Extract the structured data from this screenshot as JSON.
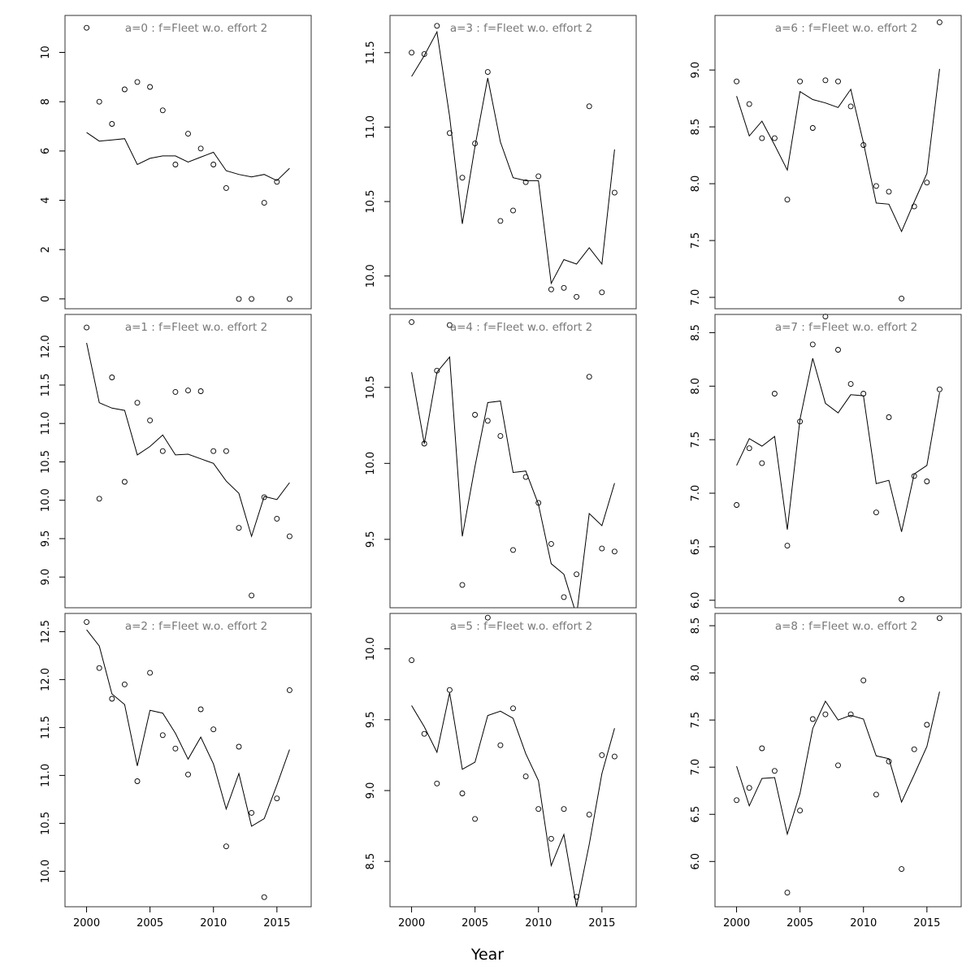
{
  "chart_data": {
    "type": "scatter",
    "xlabel": "Year",
    "layout": "3x3 grid, panels ordered top-to-bottom then left-to-right",
    "x": [
      2000,
      2001,
      2002,
      2003,
      2004,
      2005,
      2006,
      2007,
      2008,
      2009,
      2010,
      2011,
      2012,
      2013,
      2014,
      2015,
      2016
    ],
    "x_ticks": [
      2000,
      2005,
      2010,
      2015
    ],
    "xlim": [
      1998.3,
      2017.7
    ],
    "series_style": {
      "observed": "open circles",
      "fitted": "solid line"
    },
    "panels": [
      {
        "title": "a=0  :  f=Fleet w.o. effort 2",
        "ylim": [
          -0.4,
          11.5
        ],
        "yticks": [
          0,
          2,
          4,
          6,
          8,
          10
        ],
        "observed": [
          11.0,
          8.0,
          7.1,
          8.5,
          8.8,
          8.6,
          7.65,
          5.45,
          6.7,
          6.1,
          5.45,
          4.5,
          0.0,
          0.0,
          3.9,
          4.75,
          0.0
        ],
        "fitted": [
          6.75,
          6.4,
          6.45,
          6.5,
          5.45,
          5.7,
          5.8,
          5.8,
          5.55,
          5.75,
          5.95,
          5.2,
          5.05,
          4.95,
          5.05,
          4.8,
          5.3
        ]
      },
      {
        "title": "a=1  :  f=Fleet w.o. effort 2",
        "ylim": [
          8.6,
          12.42
        ],
        "yticks": [
          "9.0",
          "9.5",
          "10.0",
          "10.5",
          "11.0",
          "11.5",
          "12.0"
        ],
        "observed": [
          12.25,
          10.02,
          11.6,
          10.24,
          11.27,
          11.04,
          10.64,
          11.41,
          11.43,
          11.42,
          10.64,
          10.64,
          9.64,
          8.76,
          10.04,
          9.76,
          9.53
        ],
        "fitted": [
          12.05,
          11.27,
          11.2,
          11.17,
          10.59,
          10.7,
          10.85,
          10.59,
          10.6,
          10.54,
          10.48,
          10.25,
          10.09,
          9.53,
          10.05,
          10.01,
          10.23
        ]
      },
      {
        "title": "a=2  :  f=Fleet w.o. effort 2",
        "ylim": [
          9.63,
          12.69
        ],
        "yticks": [
          "10.0",
          "10.5",
          "11.0",
          "11.5",
          "12.0",
          "12.5"
        ],
        "observed": [
          12.6,
          12.12,
          11.8,
          11.95,
          10.94,
          12.07,
          11.42,
          11.28,
          11.01,
          11.69,
          11.48,
          10.26,
          11.3,
          10.61,
          9.73,
          10.76,
          11.89
        ],
        "fitted": [
          12.52,
          12.35,
          11.85,
          11.74,
          11.1,
          11.68,
          11.65,
          11.44,
          11.17,
          11.4,
          11.12,
          10.65,
          11.02,
          10.47,
          10.55,
          10.9,
          11.27
        ]
      },
      {
        "title": "a=3  :  f=Fleet w.o. effort 2",
        "ylim": [
          9.78,
          11.75
        ],
        "yticks": [
          "10.0",
          "10.5",
          "11.0",
          "11.5"
        ],
        "observed": [
          11.5,
          11.49,
          11.68,
          10.96,
          10.66,
          10.89,
          11.37,
          10.37,
          10.44,
          10.63,
          10.67,
          9.91,
          9.92,
          9.86,
          11.14,
          9.89,
          10.56
        ],
        "fitted": [
          11.34,
          11.48,
          11.64,
          11.07,
          10.35,
          10.87,
          11.33,
          10.9,
          10.66,
          10.64,
          10.64,
          9.95,
          10.11,
          10.08,
          10.19,
          10.08,
          10.85
        ]
      },
      {
        "title": "a=4  :  f=Fleet w.o. effort 2",
        "ylim": [
          9.05,
          10.98
        ],
        "yticks": [
          "9.5",
          "10.0",
          "10.5"
        ],
        "observed": [
          10.93,
          10.13,
          10.61,
          10.91,
          9.2,
          10.32,
          10.28,
          10.18,
          9.43,
          9.91,
          9.74,
          9.47,
          9.12,
          9.27,
          10.57,
          9.44,
          9.42
        ],
        "fitted": [
          10.6,
          10.13,
          10.6,
          10.7,
          9.52,
          9.98,
          10.4,
          10.41,
          9.94,
          9.95,
          9.73,
          9.34,
          9.27,
          9.0,
          9.67,
          9.59,
          9.87
        ]
      },
      {
        "title": "a=5  :  f=Fleet w.o. effort 2",
        "ylim": [
          8.18,
          10.25
        ],
        "yticks": [
          "8.5",
          "9.0",
          "9.5",
          "10.0"
        ],
        "observed": [
          9.92,
          9.4,
          9.05,
          9.71,
          8.98,
          8.8,
          10.22,
          9.32,
          9.58,
          9.1,
          8.87,
          8.66,
          8.87,
          8.25,
          8.83,
          9.25,
          9.24
        ],
        "fitted": [
          9.6,
          9.45,
          9.27,
          9.69,
          9.15,
          9.2,
          9.53,
          9.56,
          9.51,
          9.26,
          9.07,
          8.47,
          8.69,
          8.18,
          8.62,
          9.12,
          9.44
        ]
      },
      {
        "title": "a=6  :  f=Fleet w.o. effort 2",
        "ylim": [
          6.9,
          9.48
        ],
        "yticks": [
          "7.0",
          "7.5",
          "8.0",
          "8.5",
          "9.0"
        ],
        "observed": [
          8.9,
          8.7,
          8.4,
          8.4,
          7.86,
          8.9,
          8.49,
          8.91,
          8.9,
          8.68,
          8.34,
          7.98,
          7.93,
          6.99,
          7.8,
          8.01,
          9.42
        ],
        "fitted": [
          8.77,
          8.42,
          8.55,
          8.34,
          8.12,
          8.81,
          8.74,
          8.71,
          8.67,
          8.83,
          8.36,
          7.83,
          7.82,
          7.58,
          7.84,
          8.09,
          9.01
        ]
      },
      {
        "title": "a=7  :  f=Fleet w.o. effort 2",
        "ylim": [
          5.93,
          8.67
        ],
        "yticks": [
          "6.0",
          "6.5",
          "7.0",
          "7.5",
          "8.0",
          "8.5"
        ],
        "observed": [
          6.89,
          7.42,
          7.28,
          7.93,
          6.51,
          7.67,
          8.39,
          8.65,
          8.34,
          8.02,
          7.93,
          6.82,
          7.71,
          6.01,
          7.16,
          7.11,
          7.97
        ],
        "fitted": [
          7.26,
          7.51,
          7.44,
          7.53,
          6.66,
          7.69,
          8.26,
          7.84,
          7.75,
          7.92,
          7.91,
          7.09,
          7.12,
          6.64,
          7.18,
          7.26,
          7.94
        ]
      },
      {
        "title": "a=8  :  f=Fleet w.o. effort 2",
        "ylim": [
          5.52,
          8.63
        ],
        "yticks": [
          "6.0",
          "6.5",
          "7.0",
          "7.5",
          "8.0",
          "8.5"
        ],
        "observed": [
          6.65,
          6.78,
          7.2,
          6.96,
          5.67,
          6.54,
          7.51,
          7.56,
          7.02,
          7.56,
          7.92,
          6.71,
          7.06,
          5.92,
          7.19,
          7.45,
          8.58
        ],
        "fitted": [
          7.01,
          6.59,
          6.88,
          6.89,
          6.29,
          6.72,
          7.41,
          7.7,
          7.5,
          7.55,
          7.51,
          7.12,
          7.09,
          6.63,
          6.92,
          7.22,
          7.8
        ]
      }
    ]
  }
}
